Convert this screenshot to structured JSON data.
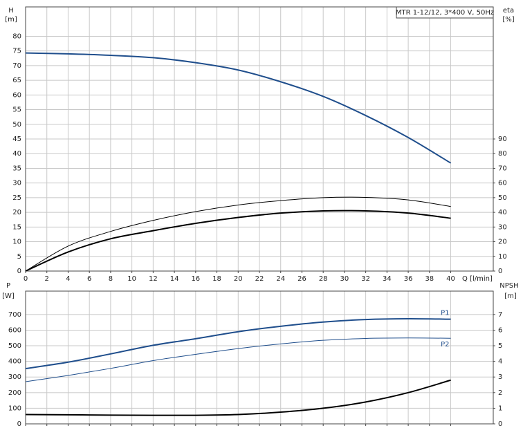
{
  "chart_data": [
    {
      "type": "line",
      "title": "MTR 1-12/12, 3*400 V, 50Hz",
      "ylabel": "H",
      "yunit": "[m]",
      "y2label": "eta",
      "y2unit": "[%]",
      "xlabel": "Q [l/min]",
      "xlim": [
        0,
        44
      ],
      "xticks": [
        0,
        2,
        4,
        6,
        8,
        10,
        12,
        14,
        16,
        18,
        20,
        22,
        24,
        26,
        28,
        30,
        32,
        34,
        36,
        38,
        40
      ],
      "ylim": [
        0,
        90
      ],
      "yticks": [
        0,
        5,
        10,
        15,
        20,
        25,
        30,
        35,
        40,
        45,
        50,
        55,
        60,
        65,
        70,
        75,
        80
      ],
      "y2lim": [
        0,
        180
      ],
      "y2ticks": [
        0,
        10,
        20,
        30,
        40,
        50,
        60,
        70,
        80,
        90
      ],
      "grid": true,
      "x": [
        0,
        4,
        8,
        12,
        16,
        20,
        24,
        28,
        32,
        36,
        40
      ],
      "series": [
        {
          "color": "#1f4e8c",
          "line_width": 2,
          "axis": "y",
          "values": [
            74.3,
            74,
            73.5,
            72.7,
            71,
            68.5,
            64.5,
            59.5,
            53,
            45.5,
            36.8
          ]
        },
        {
          "color": "#000000",
          "line_width": 1,
          "axis": "y2",
          "values": [
            0,
            17,
            27,
            34.5,
            40.5,
            45,
            48,
            50,
            50.2,
            48.5,
            44
          ]
        },
        {
          "color": "#000000",
          "line_width": 2,
          "axis": "y2",
          "values": [
            0,
            13,
            22,
            27.5,
            32.5,
            36.5,
            39.5,
            41,
            41,
            39.5,
            36
          ]
        }
      ]
    },
    {
      "type": "line",
      "ylabel": "P",
      "yunit": "[W]",
      "y2label": "NPSH",
      "y2unit": "[m]",
      "xlim": [
        0,
        44
      ],
      "ylim": [
        0,
        850
      ],
      "yticks": [
        0,
        100,
        200,
        300,
        400,
        500,
        600,
        700
      ],
      "y2lim": [
        0,
        8.5
      ],
      "y2ticks": [
        0,
        1,
        2,
        3,
        4,
        5,
        6,
        7
      ],
      "grid": true,
      "x": [
        0,
        4,
        8,
        12,
        16,
        20,
        24,
        28,
        32,
        36,
        40
      ],
      "series": [
        {
          "name": "P1",
          "color": "#1f4e8c",
          "line_width": 2,
          "axis": "y",
          "values": [
            354,
            395,
            448,
            503,
            545,
            590,
            625,
            652,
            668,
            673,
            670
          ]
        },
        {
          "name": "P2",
          "color": "#1f4e8c",
          "line_width": 1,
          "axis": "y",
          "values": [
            270,
            310,
            355,
            405,
            445,
            482,
            512,
            535,
            547,
            550,
            548
          ]
        },
        {
          "color": "#000000",
          "line_width": 2,
          "axis": "y2",
          "values": [
            0.6,
            0.58,
            0.56,
            0.55,
            0.55,
            0.6,
            0.75,
            1.0,
            1.4,
            2.0,
            2.8
          ]
        }
      ]
    }
  ]
}
